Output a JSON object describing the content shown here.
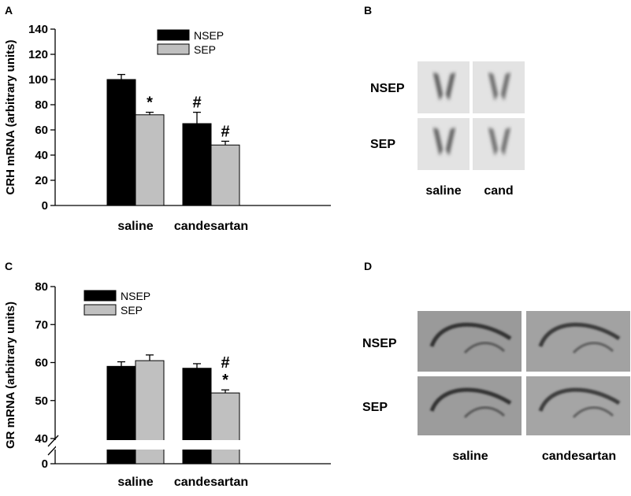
{
  "panels": {
    "A": {
      "letter": "A"
    },
    "B": {
      "letter": "B",
      "row_labels": [
        "NSEP",
        "SEP"
      ],
      "col_labels": [
        "saline",
        "cand"
      ]
    },
    "C": {
      "letter": "C"
    },
    "D": {
      "letter": "D",
      "row_labels": [
        "NSEP",
        "SEP"
      ],
      "col_labels": [
        "saline",
        "candesartan"
      ]
    }
  },
  "colors": {
    "NSEP": "#000000",
    "SEP": "#c0c0c0"
  },
  "chart_data": [
    {
      "type": "bar",
      "ylabel": "CRH mRNA (arbitrary units)",
      "ylim": [
        0,
        140
      ],
      "yticks": [
        0,
        20,
        40,
        60,
        80,
        100,
        120,
        140
      ],
      "categories": [
        "saline",
        "candesartan"
      ],
      "legend": "top-center",
      "series": [
        {
          "name": "NSEP",
          "values": [
            100,
            65
          ],
          "errors": [
            4,
            9
          ]
        },
        {
          "name": "SEP",
          "values": [
            72,
            48
          ],
          "errors": [
            2,
            3
          ]
        }
      ],
      "annotations": [
        {
          "category": 0,
          "series": 1,
          "text": "*"
        },
        {
          "category": 1,
          "series": 0,
          "text": "#"
        },
        {
          "category": 1,
          "series": 1,
          "text": "#"
        }
      ]
    },
    {
      "type": "bar",
      "ylabel": "GR mRNA (arbitrary units)",
      "ylim": [
        40,
        80
      ],
      "yticks": [
        40,
        50,
        60,
        70,
        80
      ],
      "axis_break": {
        "low_tick": 0
      },
      "categories": [
        "saline",
        "candesartan"
      ],
      "legend": "top-left",
      "series": [
        {
          "name": "NSEP",
          "values": [
            59,
            58.5
          ],
          "errors": [
            1.2,
            1.2
          ]
        },
        {
          "name": "SEP",
          "values": [
            60.5,
            52
          ],
          "errors": [
            1.5,
            0.8
          ]
        }
      ],
      "annotations": [
        {
          "category": 1,
          "series": 1,
          "text": "#",
          "level": 2
        },
        {
          "category": 1,
          "series": 1,
          "text": "*",
          "level": 1
        }
      ]
    }
  ]
}
